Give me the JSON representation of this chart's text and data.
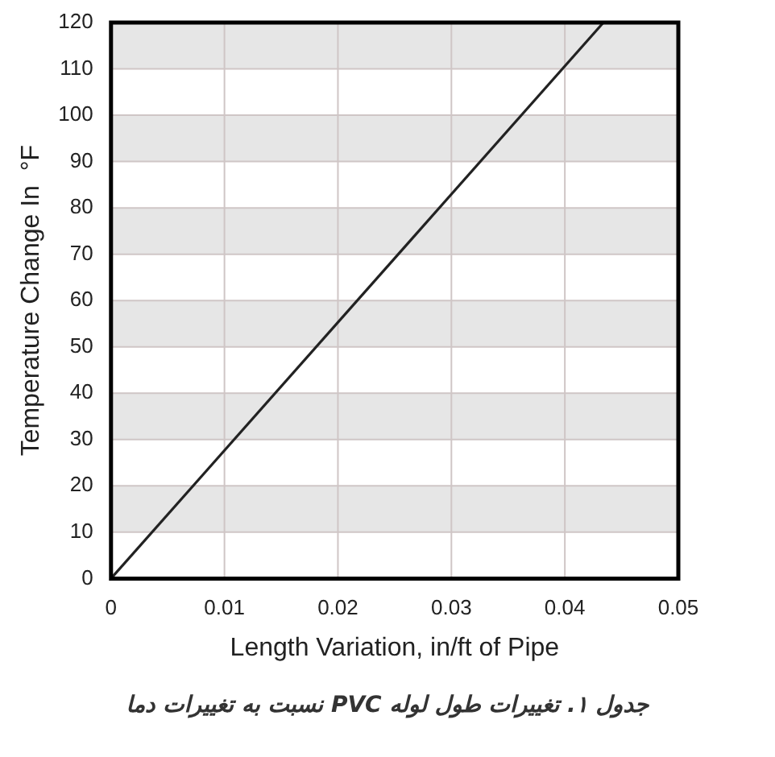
{
  "chart_data": {
    "type": "line",
    "xlabel": "Length Variation, in/ft of Pipe",
    "ylabel": "Temperature Change In  °F",
    "annotations": [
      "جدول ۱.  تغییرات طول لوله PVC نسبت به تغییرات دما"
    ],
    "series": [
      {
        "color": "#222222",
        "x": [
          0,
          0.0434
        ],
        "values": [
          0,
          120
        ]
      }
    ],
    "xlim": [
      0,
      0.05
    ],
    "xticks": [
      0,
      0.01,
      0.02,
      0.03,
      0.04,
      0.05
    ],
    "ylim": [
      0,
      120
    ],
    "yticks": [
      0,
      10,
      20,
      30,
      40,
      50,
      60,
      70,
      80,
      90,
      100,
      110,
      120
    ],
    "grid": true,
    "legend": false,
    "marker": "none",
    "line_style": "solid",
    "bands": [
      {
        "axis": "y",
        "from": 10,
        "to": 20,
        "color": "#e6e6e6"
      },
      {
        "axis": "y",
        "from": 30,
        "to": 40,
        "color": "#e6e6e6"
      },
      {
        "axis": "y",
        "from": 50,
        "to": 60,
        "color": "#e6e6e6"
      },
      {
        "axis": "y",
        "from": 70,
        "to": 80,
        "color": "#e6e6e6"
      },
      {
        "axis": "y",
        "from": 90,
        "to": 100,
        "color": "#e6e6e6"
      },
      {
        "axis": "y",
        "from": 110,
        "to": 120,
        "color": "#e6e6e6"
      }
    ]
  }
}
